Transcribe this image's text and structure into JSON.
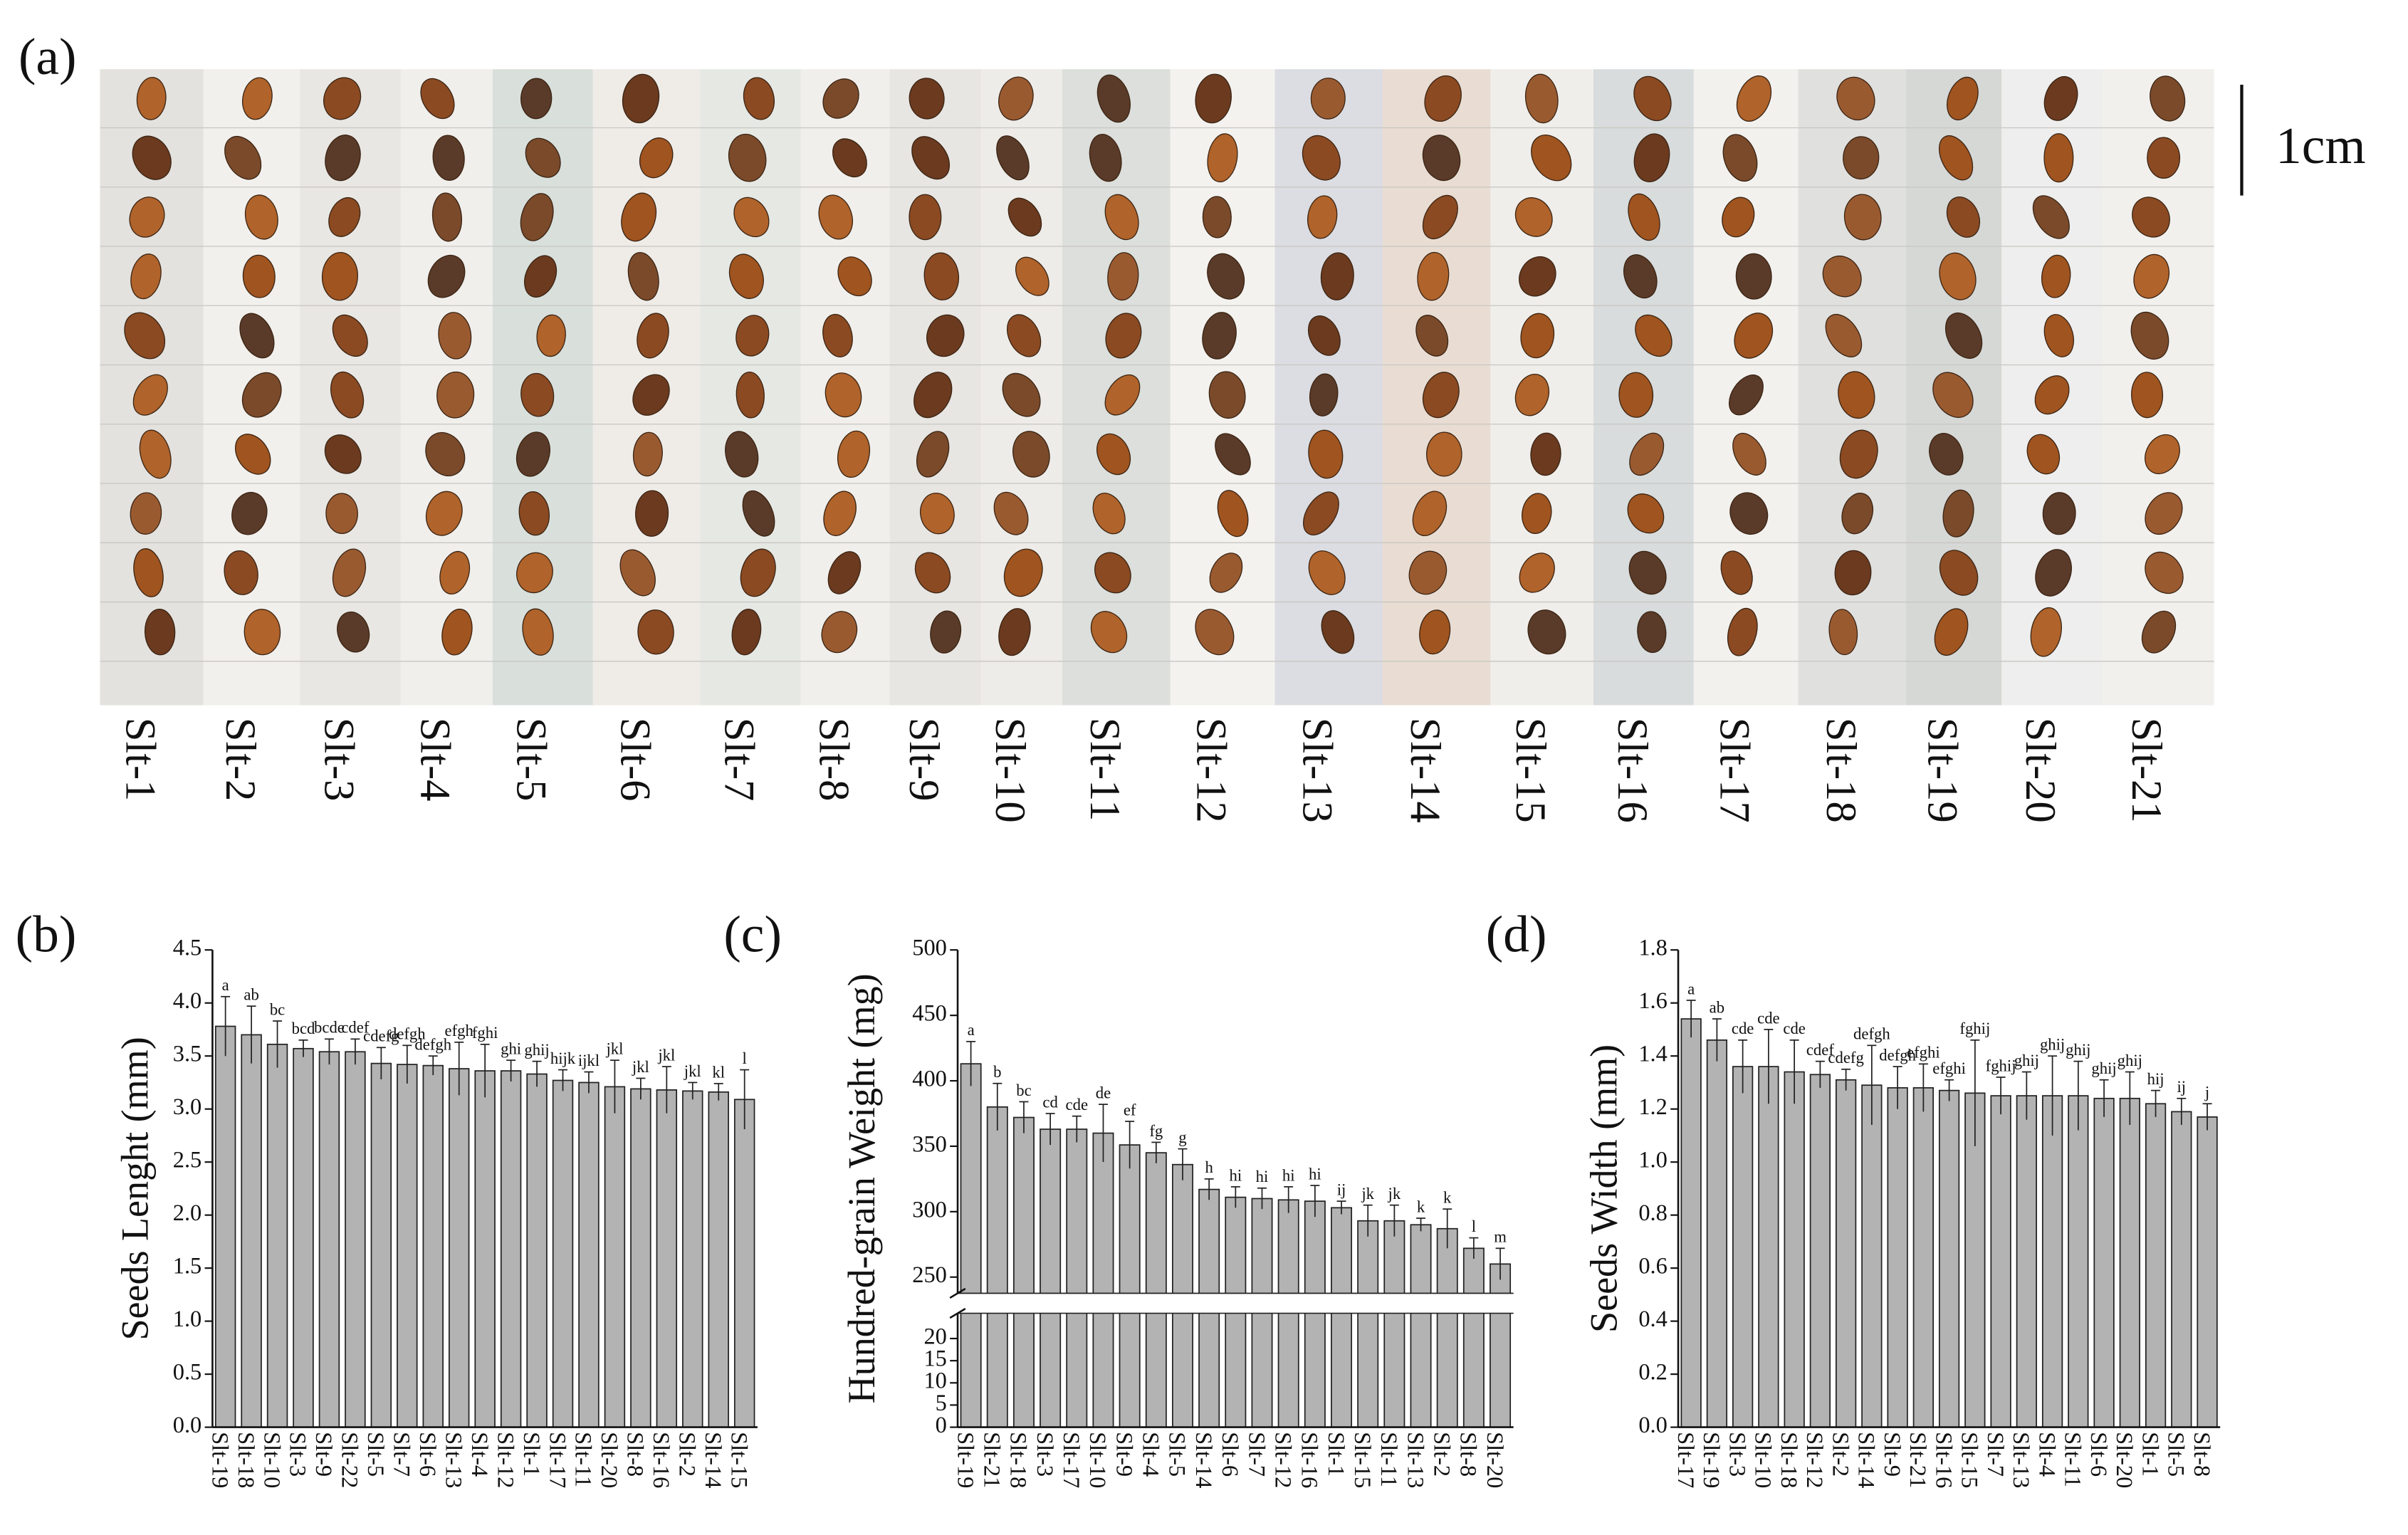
{
  "photo": {
    "label": "(a)",
    "scale_label": "1cm",
    "samples": [
      "Slt-1",
      "Slt-2",
      "Slt-3",
      "Slt-4",
      "Slt-5",
      "Slt-6",
      "Slt-7",
      "Slt-8",
      "Slt-9",
      "Slt-10",
      "Slt-11",
      "Slt-12",
      "Slt-13",
      "Slt-14",
      "Slt-15",
      "Slt-16",
      "Slt-17",
      "Slt-18",
      "Slt-19",
      "Slt-20",
      "Slt-21"
    ]
  },
  "chart_data": [
    {
      "type": "bar",
      "panel_label": "(b)",
      "y_label": "Seeds  Lenght (mm)",
      "color": "#b3b3b3",
      "categories": [
        "Slt-19",
        "Slt-18",
        "Slt-10",
        "Slt-3",
        "Slt-9",
        "Slt-22",
        "Slt-5",
        "Slt-7",
        "Slt-6",
        "Slt-13",
        "Slt-4",
        "Slt-12",
        "Slt-1",
        "Slt-17",
        "Slt-11",
        "Slt-20",
        "Slt-8",
        "Slt-16",
        "Slt-2",
        "Slt-14",
        "Slt-15"
      ],
      "values": [
        3.78,
        3.7,
        3.61,
        3.57,
        3.54,
        3.54,
        3.43,
        3.42,
        3.41,
        3.38,
        3.36,
        3.36,
        3.33,
        3.27,
        3.25,
        3.21,
        3.19,
        3.18,
        3.17,
        3.16,
        3.09
      ],
      "errors": [
        0.28,
        0.27,
        0.22,
        0.08,
        0.12,
        0.12,
        0.15,
        0.18,
        0.09,
        0.25,
        0.25,
        0.1,
        0.12,
        0.1,
        0.1,
        0.25,
        0.1,
        0.22,
        0.08,
        0.08,
        0.28
      ],
      "letters": [
        "a",
        "ab",
        "bc",
        "bcd",
        "bcde",
        "cdef",
        "cdefg",
        "defgh",
        "defgh",
        "efgh",
        "fghi",
        "ghi",
        "ghij",
        "hijk",
        "ijkl",
        "jkl",
        "jkl",
        "jkl",
        "jkl",
        "kl",
        "l"
      ],
      "ylim": [
        0,
        4.5
      ],
      "yticks": [
        {
          "value": 0,
          "label": "0.0"
        },
        0.5,
        {
          "value": 1,
          "label": "1.0"
        },
        1.5,
        {
          "value": 2,
          "label": "2.0"
        },
        2.5,
        {
          "value": 3,
          "label": "3.0"
        },
        3.5,
        {
          "value": 4,
          "label": "4.0"
        },
        4.5
      ]
    },
    {
      "type": "bar",
      "panel_label": "(c)",
      "y_label": "Hundred-grain Weight (mg)",
      "color": "#b3b3b3",
      "categories": [
        "Slt-19",
        "Slt-21",
        "Slt-18",
        "Slt-3",
        "Slt-17",
        "Slt-10",
        "Slt-9",
        "Slt-4",
        "Slt-5",
        "Slt-14",
        "Slt-6",
        "Slt-7",
        "Slt-12",
        "Slt-16",
        "Slt-1",
        "Slt-15",
        "Slt-11",
        "Slt-13",
        "Slt-2",
        "Slt-8",
        "Slt-20"
      ],
      "values": [
        413,
        380,
        372,
        363,
        363,
        360,
        351,
        345,
        336,
        317,
        311,
        310,
        309,
        308,
        303,
        293,
        293,
        290,
        287,
        272,
        260
      ],
      "errors": [
        17,
        18,
        12,
        12,
        10,
        22,
        18,
        8,
        12,
        8,
        8,
        8,
        10,
        12,
        5,
        12,
        12,
        5,
        15,
        8,
        12
      ],
      "letters": [
        "a",
        "b",
        "bc",
        "cd",
        "cde",
        "de",
        "ef",
        "fg",
        "g",
        "h",
        "hi",
        "hi",
        "hi",
        "hi",
        "ij",
        "jk",
        "jk",
        "k",
        "k",
        "l",
        "m"
      ],
      "ylim": [
        0,
        500
      ],
      "ybreak": [
        25,
        240
      ],
      "yticks": [
        0,
        5,
        10,
        15,
        20,
        250,
        300,
        350,
        400,
        450,
        500
      ]
    },
    {
      "type": "bar",
      "panel_label": "(d)",
      "y_label": "Seeds Width (mm)",
      "color": "#b3b3b3",
      "categories": [
        "Slt-17",
        "Slt-19",
        "Slt-3",
        "Slt-10",
        "Slt-18",
        "Slt-12",
        "Slt-2",
        "Slt-14",
        "Slt-9",
        "Slt-21",
        "Slt-16",
        "Slt-15",
        "Slt-7",
        "Slt-13",
        "Slt-4",
        "Slt-11",
        "Slt-6",
        "Slt-20",
        "Slt-1",
        "Slt-5",
        "Slt-8"
      ],
      "values": [
        1.54,
        1.46,
        1.36,
        1.36,
        1.34,
        1.33,
        1.31,
        1.29,
        1.28,
        1.28,
        1.27,
        1.26,
        1.25,
        1.25,
        1.25,
        1.25,
        1.24,
        1.24,
        1.22,
        1.19,
        1.17
      ],
      "errors": [
        0.07,
        0.08,
        0.1,
        0.14,
        0.12,
        0.05,
        0.04,
        0.15,
        0.08,
        0.09,
        0.04,
        0.2,
        0.07,
        0.09,
        0.15,
        0.13,
        0.07,
        0.1,
        0.05,
        0.05,
        0.05
      ],
      "letters": [
        "a",
        "ab",
        "cde",
        "cde",
        "cde",
        "cdef",
        "cdefg",
        "defgh",
        "defgh",
        "efghi",
        "efghi",
        "fghij",
        "fghij",
        "ghij",
        "ghij",
        "ghij",
        "ghij",
        "ghij",
        "hij",
        "ij",
        "j"
      ],
      "ylim": [
        0,
        1.8
      ],
      "yticks": [
        {
          "value": 0,
          "label": "0.0"
        },
        0.2,
        0.4,
        0.6,
        0.8,
        {
          "value": 1,
          "label": "1.0"
        },
        1.2,
        1.4,
        1.6,
        1.8
      ]
    }
  ]
}
